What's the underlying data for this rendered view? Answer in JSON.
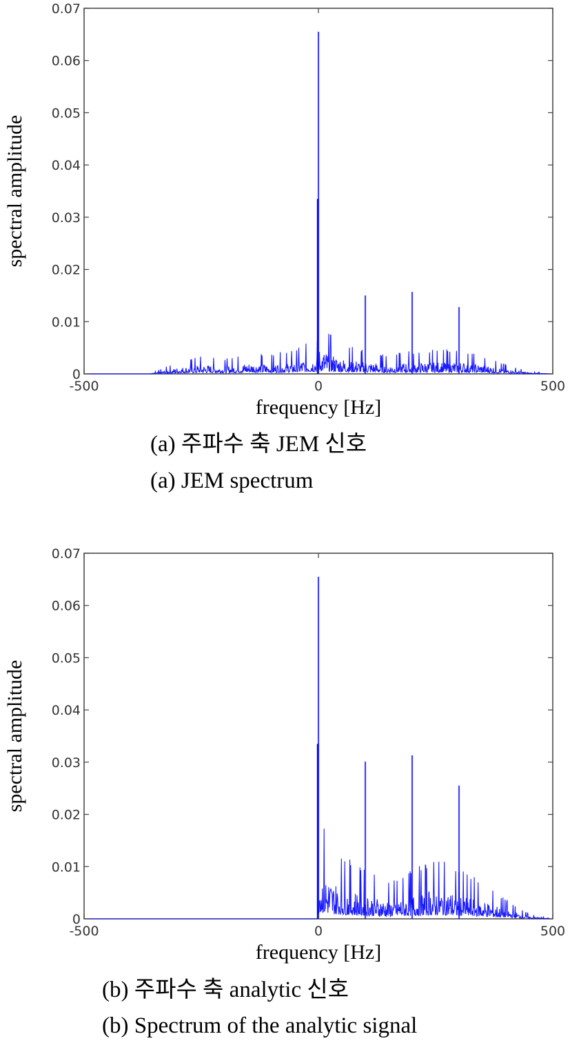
{
  "captions": {
    "a_korean": "(a) 주파수 축 JEM 신호",
    "a_english": "(a) JEM spectrum",
    "b_korean": "(b) 주파수 축 analytic 신호",
    "b_english": "(b) Spectrum of the analytic signal"
  },
  "style": {
    "line_color": "#0000ff",
    "axis_color": "#404040",
    "tick_text_color": "#333333"
  },
  "chart_data": [
    {
      "type": "line",
      "title": "",
      "xlabel": "frequency [Hz]",
      "ylabel": "spectral amplitude",
      "xlim": [
        -500,
        500
      ],
      "ylim": [
        0,
        0.07
      ],
      "xticks": [
        -500,
        0,
        500
      ],
      "xtick_labels": [
        "-500",
        "0",
        "500"
      ],
      "yticks": [
        0,
        0.01,
        0.02,
        0.03,
        0.04,
        0.05,
        0.06,
        0.07
      ],
      "ytick_labels": [
        "0",
        "0.01",
        "0.02",
        "0.03",
        "0.04",
        "0.05",
        "0.06",
        "0.07"
      ],
      "grid": false,
      "series": [
        {
          "x": [
            -500,
            -360,
            -300,
            -250,
            -200,
            -150,
            -100,
            -50,
            -1,
            0,
            1,
            50,
            99,
            100,
            101,
            150,
            199,
            200,
            201,
            250,
            299,
            300,
            301,
            350,
            400,
            450,
            500
          ],
          "y": [
            0,
            0,
            0.001,
            0.0015,
            0.0012,
            0.0018,
            0.0016,
            0.002,
            0.003,
            0.0655,
            0.004,
            0.0025,
            0.002,
            0.015,
            0.002,
            0.0015,
            0.002,
            0.0157,
            0.0018,
            0.002,
            0.002,
            0.0128,
            0.002,
            0.0015,
            0.0008,
            0.0002,
            0
          ]
        }
      ],
      "annotations": [
        "secondary peak near 0 Hz ≈ 0.0335"
      ]
    },
    {
      "type": "line",
      "title": "",
      "xlabel": "frequency [Hz]",
      "ylabel": "spectral amplitude",
      "xlim": [
        -500,
        500
      ],
      "ylim": [
        0,
        0.07
      ],
      "xticks": [
        -500,
        0,
        500
      ],
      "xtick_labels": [
        "-500",
        "0",
        "500"
      ],
      "yticks": [
        0,
        0.01,
        0.02,
        0.03,
        0.04,
        0.05,
        0.06,
        0.07
      ],
      "ytick_labels": [
        "0",
        "0.01",
        "0.02",
        "0.03",
        "0.04",
        "0.05",
        "0.06",
        "0.07"
      ],
      "grid": false,
      "series": [
        {
          "x": [
            -500,
            -1,
            0,
            1,
            30,
            60,
            99,
            100,
            101,
            150,
            199,
            200,
            201,
            250,
            299,
            300,
            301,
            350,
            400,
            450,
            500
          ],
          "y": [
            0,
            0,
            0.0655,
            0.009,
            0.006,
            0.005,
            0.004,
            0.0301,
            0.004,
            0.003,
            0.004,
            0.0313,
            0.004,
            0.005,
            0.004,
            0.0255,
            0.004,
            0.003,
            0.0016,
            0.0004,
            0
          ]
        }
      ],
      "annotations": [
        "secondary peak near 0 Hz ≈ 0.0335"
      ]
    }
  ]
}
